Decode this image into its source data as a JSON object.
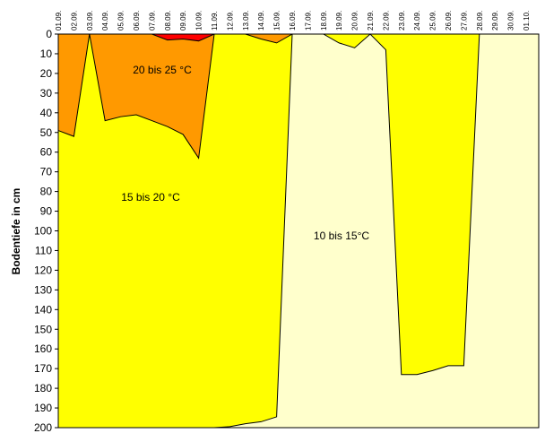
{
  "chart_data": {
    "type": "area",
    "y_label": "Bodentiefe in cm",
    "categories": [
      "01.09.",
      "02.09.",
      "03.09.",
      "04.09.",
      "05.09.",
      "06.09.",
      "07.09.",
      "08.09.",
      "09.09.",
      "10.09.",
      "11.09.",
      "12.09.",
      "13.09.",
      "14.09.",
      "15.09.",
      "16.09.",
      "17.09.",
      "18.09.",
      "19.09.",
      "20.09.",
      "21.09.",
      "22.09.",
      "23.09.",
      "24.09.",
      "25.09.",
      "26.09.",
      "27.09.",
      "28.09.",
      "29.09.",
      "30.09.",
      "01.10."
    ],
    "background_color": "#ffffcc",
    "series": [
      {
        "color": "#ffff00",
        "values": [
          200,
          200,
          200,
          200,
          200,
          200,
          200,
          200,
          200,
          200,
          200,
          199.5,
          198,
          197,
          194.5,
          0,
          0,
          0,
          4.5,
          7,
          0,
          8,
          173,
          173,
          171,
          168.5,
          168.5,
          0,
          0,
          0,
          0
        ]
      },
      {
        "color": "#ff9900",
        "values": [
          49,
          52,
          0,
          44,
          42,
          41,
          44,
          47,
          51,
          63,
          0,
          0,
          0,
          2.5,
          4.5,
          0,
          0,
          0,
          0,
          0,
          0,
          0,
          0,
          0,
          0,
          0,
          0,
          0,
          0,
          0,
          0
        ]
      },
      {
        "color": "#ff0000",
        "values": [
          0,
          0,
          0,
          0,
          0,
          0,
          0,
          3,
          2.5,
          3.5,
          0,
          0,
          0,
          0,
          0,
          0,
          0,
          0,
          0,
          0,
          0,
          0,
          0,
          0,
          0,
          0,
          0,
          0,
          0,
          0,
          0
        ]
      }
    ],
    "annotations": [
      "20 bis 25 °C",
      "15 bis 20 °C",
      "10 bis 15°C"
    ],
    "ylim": [
      0,
      200
    ],
    "y_inverted": true,
    "yticks": [
      0,
      10,
      20,
      30,
      40,
      50,
      60,
      70,
      80,
      90,
      100,
      110,
      120,
      130,
      140,
      150,
      160,
      170,
      180,
      190,
      200
    ]
  }
}
